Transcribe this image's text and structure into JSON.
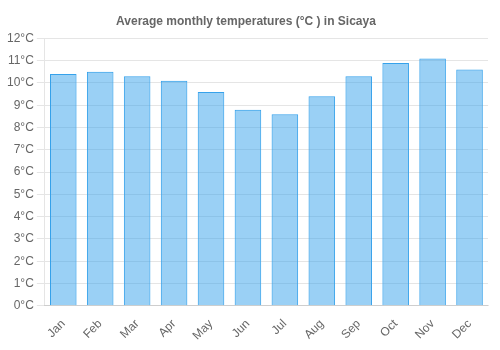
{
  "chart_data": {
    "type": "bar",
    "title": "Average monthly temperatures (°C ) in Sicaya",
    "categories": [
      "Jan",
      "Feb",
      "Mar",
      "Apr",
      "May",
      "Jun",
      "Jul",
      "Aug",
      "Sep",
      "Oct",
      "Nov",
      "Dec"
    ],
    "values": [
      10.4,
      10.5,
      10.3,
      10.1,
      9.6,
      8.8,
      8.6,
      9.4,
      10.3,
      10.9,
      11.1,
      10.6
    ],
    "ylim": [
      0,
      12
    ],
    "yticks": [
      {
        "value": 0,
        "label": "0°C"
      },
      {
        "value": 1,
        "label": "1°C"
      },
      {
        "value": 2,
        "label": "2°C"
      },
      {
        "value": 3,
        "label": "3°C"
      },
      {
        "value": 4,
        "label": "4°C"
      },
      {
        "value": 5,
        "label": "5°C"
      },
      {
        "value": 6,
        "label": "6°C"
      },
      {
        "value": 7,
        "label": "7°C"
      },
      {
        "value": 8,
        "label": "8°C"
      },
      {
        "value": 9,
        "label": "9°C"
      },
      {
        "value": 10,
        "label": "10°C"
      },
      {
        "value": 11,
        "label": "11°C"
      },
      {
        "value": 12,
        "label": "12°C"
      }
    ],
    "grid": true
  }
}
